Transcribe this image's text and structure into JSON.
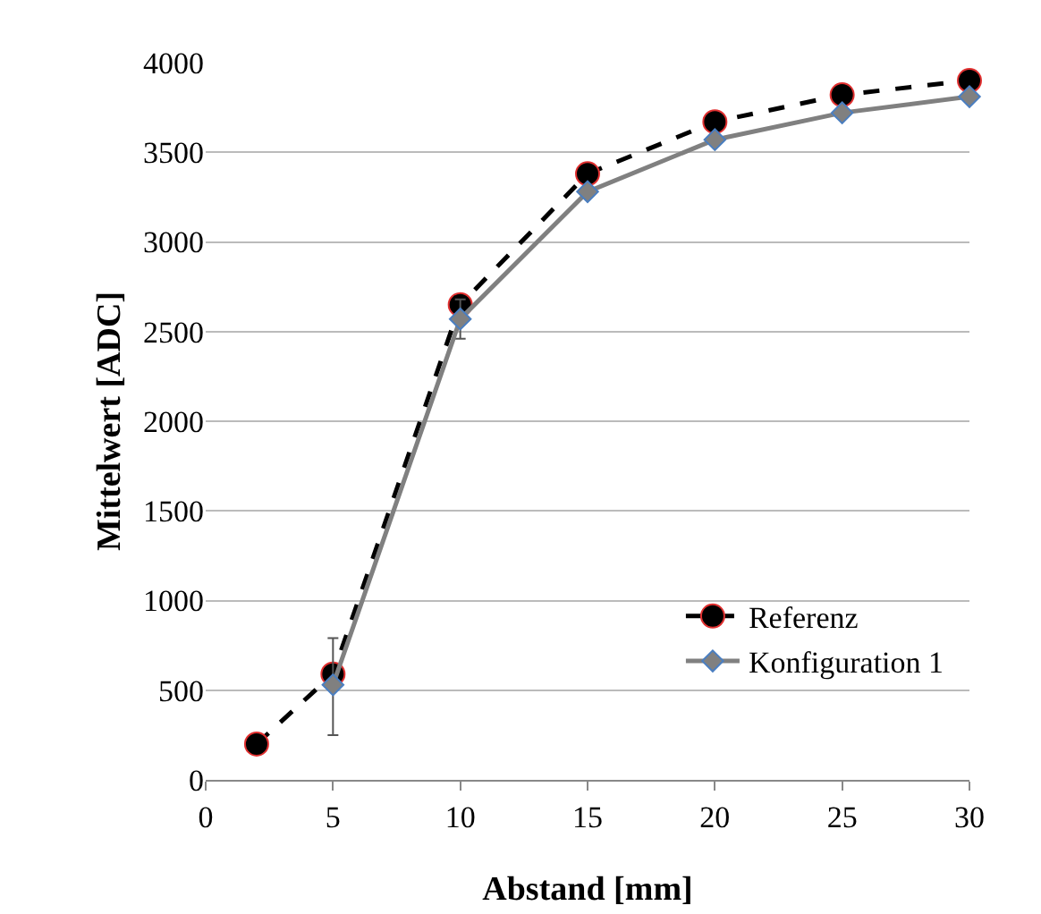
{
  "chart_data": {
    "type": "line",
    "xlabel": "Abstand [mm]",
    "ylabel": "Mittelwert [ADC]",
    "series": [
      {
        "name": "Referenz",
        "color": "#000000",
        "marker": "circle",
        "line_style": "dashed",
        "x": [
          2,
          5,
          10,
          15,
          20,
          25,
          30
        ],
        "values": [
          200,
          590,
          2650,
          3380,
          3670,
          3820,
          3900
        ]
      },
      {
        "name": "Konfiguration 1",
        "color": "#808080",
        "marker": "diamond",
        "line_style": "solid",
        "x": [
          5,
          10,
          15,
          20,
          25,
          30
        ],
        "values": [
          530,
          2570,
          3280,
          3570,
          3720,
          3810
        ],
        "errors": [
          [
            250,
            790
          ],
          110,
          null,
          null,
          null,
          null
        ]
      }
    ],
    "xlim": [
      0,
      30
    ],
    "xticks": [
      0,
      5,
      10,
      15,
      20,
      25,
      30
    ],
    "ylim": [
      0,
      4000
    ],
    "yticks": [
      0,
      500,
      1000,
      1500,
      2000,
      2500,
      3000,
      3500,
      4000
    ],
    "grid": "y",
    "legend": "bottom right"
  }
}
